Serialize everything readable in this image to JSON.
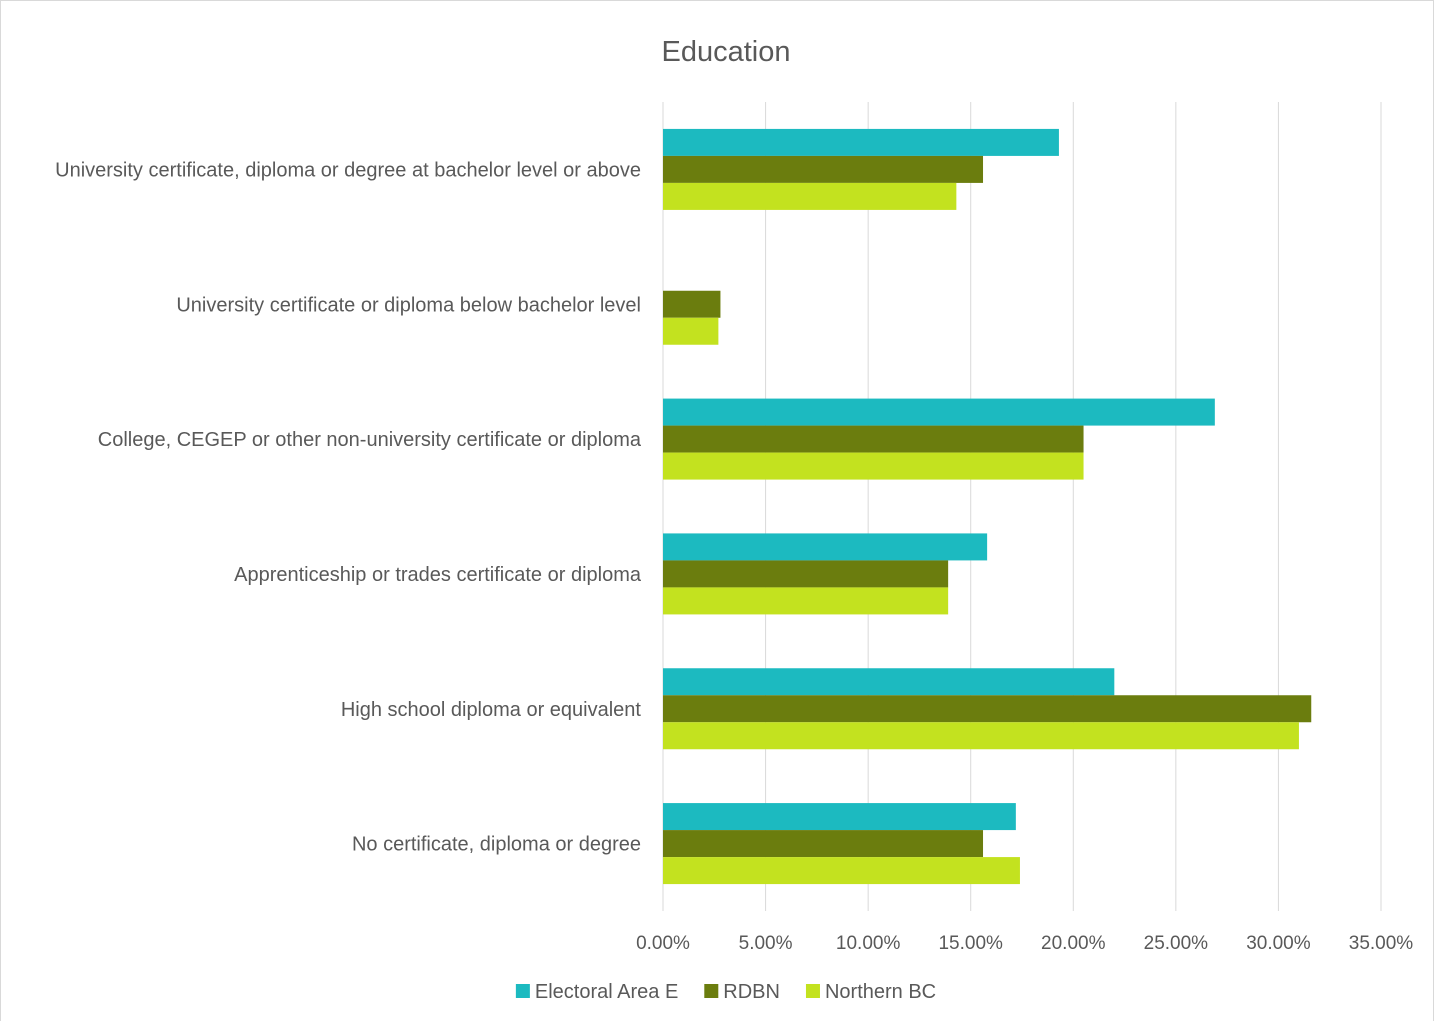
{
  "chart_data": {
    "type": "bar",
    "orientation": "horizontal",
    "title": "Education",
    "xlabel": "",
    "ylabel": "",
    "xlim": [
      0,
      35
    ],
    "x_tick_labels": [
      "0.00%",
      "5.00%",
      "10.00%",
      "15.00%",
      "20.00%",
      "25.00%",
      "30.00%",
      "35.00%"
    ],
    "grid": true,
    "legend_position": "bottom",
    "categories": [
      "University certificate, diploma or degree at bachelor level or above",
      "University certificate or diploma below bachelor level",
      "College, CEGEP or other non-university certificate or diploma",
      "Apprenticeship or trades certificate or diploma",
      "High school diploma or equivalent",
      "No certificate, diploma or degree"
    ],
    "series": [
      {
        "name": "Electoral Area E",
        "color": "#1cbac0",
        "values": [
          19.3,
          0.0,
          26.9,
          15.8,
          22.0,
          17.2
        ]
      },
      {
        "name": "RDBN",
        "color": "#6b7d0e",
        "values": [
          15.6,
          2.8,
          20.5,
          13.9,
          31.6,
          15.6
        ]
      },
      {
        "name": "Northern BC",
        "color": "#c3e21f",
        "values": [
          14.3,
          2.7,
          20.5,
          13.9,
          31.0,
          17.4
        ]
      }
    ]
  }
}
